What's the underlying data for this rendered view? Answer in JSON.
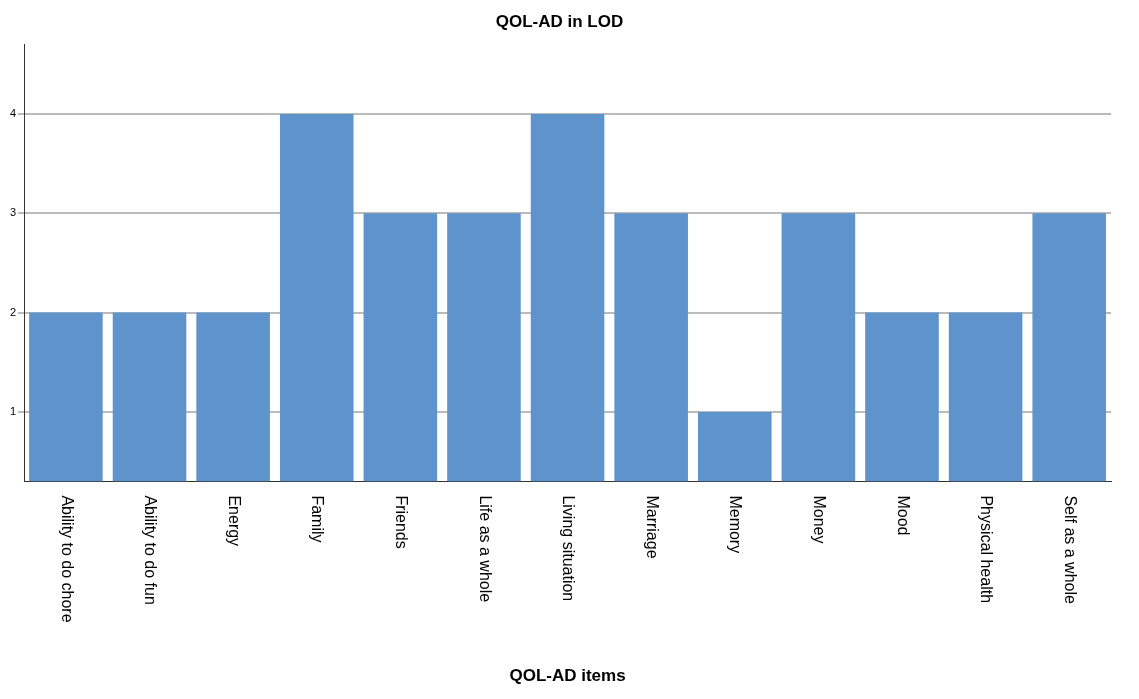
{
  "chart_data": {
    "type": "bar",
    "title": "QOL-AD in LOD",
    "xlabel": "QOL-AD items",
    "categories": [
      "Ability to do chore",
      "Ability to do fun",
      "Energy",
      "Family",
      "Friends",
      "Life as a whole",
      "Living situation",
      "Marriage",
      "Memory",
      "Money",
      "Mood",
      "Physical health",
      "Self as a whole"
    ],
    "values": [
      2,
      2,
      2,
      4,
      3,
      3,
      4,
      3,
      1,
      3,
      2,
      2,
      3
    ],
    "color": "#5f93cc",
    "ylim": [
      0.3,
      4.7
    ],
    "yticks": [
      1,
      2,
      3,
      4
    ],
    "grid": "y",
    "legend": false
  }
}
